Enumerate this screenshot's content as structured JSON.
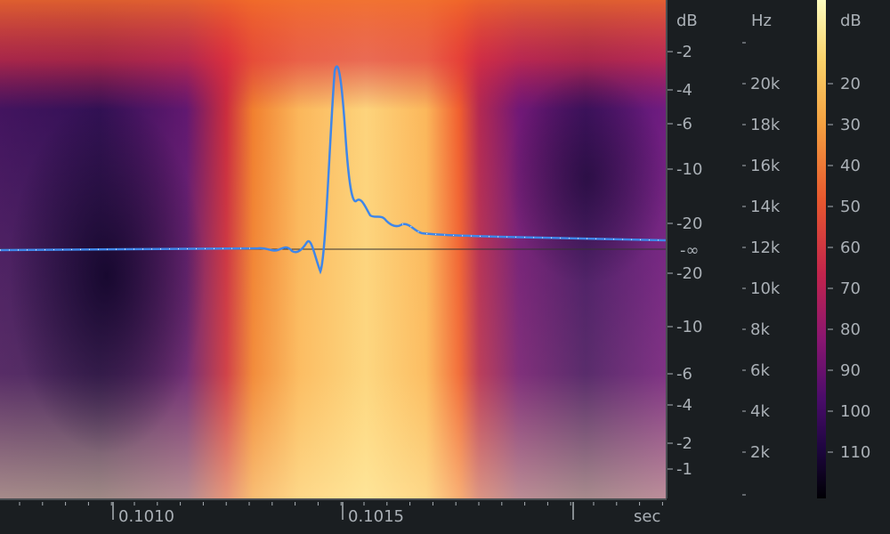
{
  "waveform_axis": {
    "unit": "dB",
    "upper": [
      "-2",
      "-4",
      "-6",
      "-10",
      "-20"
    ],
    "center": "-∞",
    "lower": [
      "-20",
      "-10",
      "-6",
      "-4",
      "-2",
      "-1"
    ]
  },
  "frequency_axis": {
    "unit": "Hz",
    "labels": [
      "20k",
      "18k",
      "16k",
      "14k",
      "12k",
      "10k",
      "8k",
      "6k",
      "4k",
      "2k"
    ]
  },
  "colorbar": {
    "unit": "dB",
    "labels": [
      "20",
      "30",
      "40",
      "50",
      "60",
      "70",
      "80",
      "90",
      "100",
      "110"
    ]
  },
  "time_axis": {
    "unit": "sec",
    "labels": [
      "0.1010",
      "0.1015"
    ]
  },
  "colors": {
    "background": "#1a1e21",
    "label_text": "#aab0b6",
    "waveform": "#3f86e8",
    "divider": "#2a2f33"
  }
}
